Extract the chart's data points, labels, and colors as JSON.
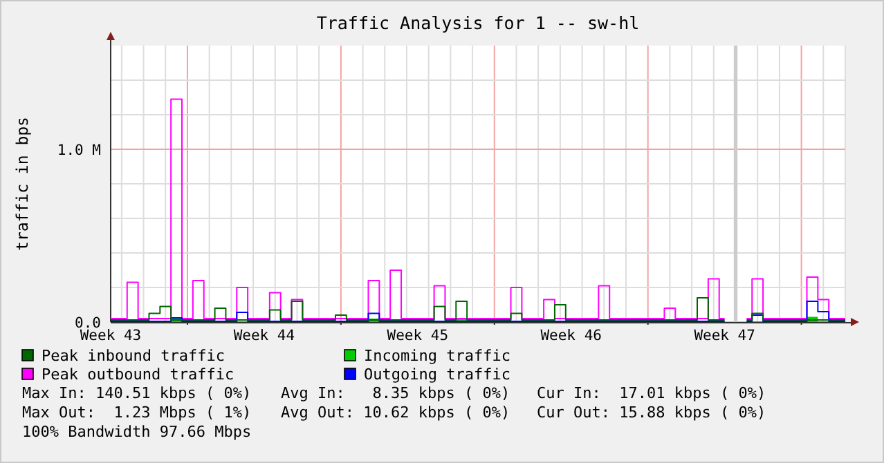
{
  "chart_data": {
    "type": "step",
    "title": "Traffic Analysis for 1 -- sw-hl",
    "ylabel": "traffic in bps",
    "categories": [
      "Week 43",
      null,
      null,
      null,
      null,
      null,
      null,
      null,
      null,
      null,
      null,
      null,
      null,
      null,
      "Week 44",
      null,
      null,
      null,
      null,
      null,
      null,
      null,
      null,
      null,
      null,
      null,
      null,
      null,
      "Week 45",
      null,
      null,
      null,
      null,
      null,
      null,
      null,
      null,
      null,
      null,
      null,
      null,
      null,
      "Week 46",
      null,
      null,
      null,
      null,
      null,
      null,
      null,
      null,
      null,
      null,
      null,
      null,
      null,
      "Week 47",
      null,
      null,
      null,
      null,
      null,
      null,
      null,
      null,
      null,
      null,
      null
    ],
    "ylim": [
      0,
      1600000
    ],
    "yticks": [
      {
        "value": 0,
        "label": "0.0"
      },
      {
        "value": 1000000,
        "label": "1.0 M"
      },
      {
        "value": 200000,
        "label": null
      },
      {
        "value": 400000,
        "label": null
      },
      {
        "value": 600000,
        "label": null
      },
      {
        "value": 800000,
        "label": null
      },
      {
        "value": 1200000,
        "label": null
      },
      {
        "value": 1400000,
        "label": null
      }
    ],
    "grid": true,
    "legend": "bottom",
    "series": [
      {
        "name": "Peak inbound traffic",
        "color": "#006600",
        "values": [
          12000,
          12000,
          12000,
          12000,
          50000,
          90000,
          12000,
          12000,
          12000,
          12000,
          80000,
          12000,
          12000,
          12000,
          12000,
          70000,
          12000,
          120000,
          12000,
          12000,
          12000,
          40000,
          12000,
          12000,
          12000,
          12000,
          12000,
          12000,
          12000,
          12000,
          90000,
          12000,
          120000,
          12000,
          12000,
          12000,
          12000,
          50000,
          12000,
          12000,
          12000,
          100000,
          12000,
          12000,
          12000,
          12000,
          12000,
          12000,
          12000,
          12000,
          12000,
          12000,
          12000,
          12000,
          140000,
          12000,
          12000,
          null,
          12000,
          50000,
          12000,
          12000,
          12000,
          12000,
          12000,
          12000,
          12000,
          12000
        ]
      },
      {
        "name": "Incoming traffic",
        "color": "#00cc00",
        "type": "area",
        "values": [
          4000,
          4000,
          4000,
          4000,
          4000,
          4000,
          20000,
          4000,
          4000,
          4000,
          4000,
          4000,
          4000,
          4000,
          4000,
          4000,
          4000,
          4000,
          4000,
          4000,
          4000,
          4000,
          4000,
          4000,
          20000,
          4000,
          4000,
          4000,
          4000,
          4000,
          4000,
          4000,
          20000,
          4000,
          4000,
          4000,
          4000,
          4000,
          4000,
          4000,
          4000,
          4000,
          4000,
          4000,
          4000,
          4000,
          4000,
          4000,
          4000,
          4000,
          4000,
          4000,
          4000,
          4000,
          4000,
          4000,
          4000,
          null,
          4000,
          4000,
          4000,
          4000,
          4000,
          4000,
          30000,
          4000,
          4000,
          4000
        ]
      },
      {
        "name": "Peak outbound traffic",
        "color": "#ff00ff",
        "values": [
          20000,
          20000,
          230000,
          20000,
          20000,
          20000,
          1290000,
          20000,
          240000,
          20000,
          20000,
          20000,
          200000,
          20000,
          20000,
          170000,
          20000,
          130000,
          20000,
          20000,
          20000,
          20000,
          20000,
          20000,
          240000,
          20000,
          300000,
          20000,
          20000,
          20000,
          210000,
          20000,
          20000,
          20000,
          20000,
          20000,
          20000,
          200000,
          20000,
          20000,
          130000,
          20000,
          20000,
          20000,
          20000,
          210000,
          20000,
          20000,
          20000,
          20000,
          20000,
          80000,
          20000,
          20000,
          20000,
          250000,
          20000,
          null,
          20000,
          250000,
          20000,
          20000,
          20000,
          20000,
          260000,
          130000,
          20000,
          20000
        ]
      },
      {
        "name": "Outgoing traffic",
        "color": "#0000ff",
        "values": [
          4000,
          4000,
          4000,
          4000,
          4000,
          4000,
          24000,
          4000,
          4000,
          4000,
          4000,
          4000,
          56000,
          4000,
          4000,
          4000,
          4000,
          4000,
          4000,
          4000,
          4000,
          4000,
          4000,
          4000,
          50000,
          4000,
          4000,
          4000,
          4000,
          4000,
          4000,
          4000,
          4000,
          4000,
          4000,
          4000,
          4000,
          4000,
          4000,
          4000,
          4000,
          4000,
          4000,
          4000,
          4000,
          4000,
          4000,
          4000,
          4000,
          4000,
          4000,
          4000,
          4000,
          4000,
          4000,
          4000,
          4000,
          null,
          4000,
          40000,
          4000,
          4000,
          4000,
          4000,
          120000,
          60000,
          4000,
          4000
        ]
      },
      {
        "type": "bar",
        "color": "#cccccc",
        "values": [
          null,
          null,
          null,
          null,
          null,
          null,
          null,
          null,
          null,
          null,
          null,
          null,
          null,
          null,
          null,
          null,
          null,
          null,
          null,
          null,
          null,
          null,
          null,
          null,
          null,
          null,
          null,
          null,
          null,
          null,
          null,
          null,
          null,
          null,
          null,
          null,
          null,
          null,
          null,
          null,
          null,
          null,
          null,
          null,
          null,
          null,
          null,
          null,
          null,
          null,
          null,
          null,
          null,
          null,
          null,
          null,
          null,
          1600000,
          null,
          null,
          null,
          null,
          null,
          null,
          null,
          null,
          null,
          null
        ]
      }
    ],
    "annotations": [
      "Max In: 140.51 kbps ( 0%)",
      "Avg In:   8.35 kbps ( 0%)",
      "Cur In:  17.01 kbps ( 0%)",
      "Max Out:  1.23 Mbps ( 1%)",
      "Avg Out: 10.62 kbps ( 0%)",
      "Cur Out: 15.88 kbps ( 0%)",
      "100% Bandwidth 97.66 Mbps"
    ]
  }
}
